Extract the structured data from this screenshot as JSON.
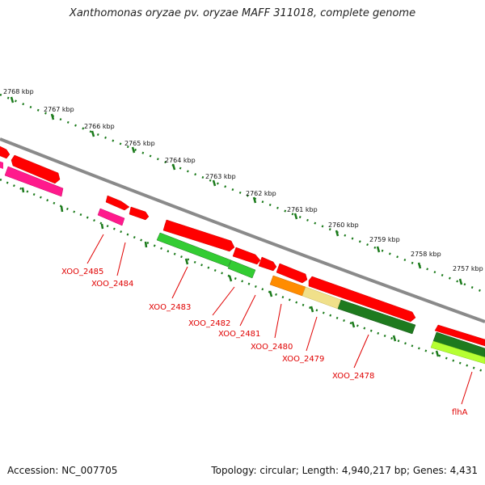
{
  "title": "Xanthomonas oryzae pv. oryzae MAFF 311018, complete genome",
  "accession": "Accession: NC_007705",
  "summary": "Topology: circular; Length: 4,940,217 bp; Genes: 4,431",
  "ticks": [
    "2768 kbp",
    "2767 kbp",
    "2766 kbp",
    "2765 kbp",
    "2764 kbp",
    "2763 kbp",
    "2762 kbp",
    "2761 kbp",
    "2760 kbp",
    "2759 kbp",
    "2758 kbp",
    "2757 kbp"
  ],
  "genes": [
    "XOO_2485",
    "XOO_2484",
    "XOO_2483",
    "XOO_2482",
    "XOO_2481",
    "XOO_2480",
    "XOO_2479",
    "XOO_2478",
    "flhA"
  ],
  "colors": {
    "backbone": "#8a8a8a",
    "cds_red": "#ff0000",
    "label_red": "#e00000",
    "magenta": "#ff1a8c",
    "green": "#33cc33",
    "dark_green": "#1e7a1e",
    "orange": "#ff8c00",
    "pale_yellow": "#f0e08a",
    "lime": "#b6ff33",
    "scale_green": "#1a7a1a"
  }
}
